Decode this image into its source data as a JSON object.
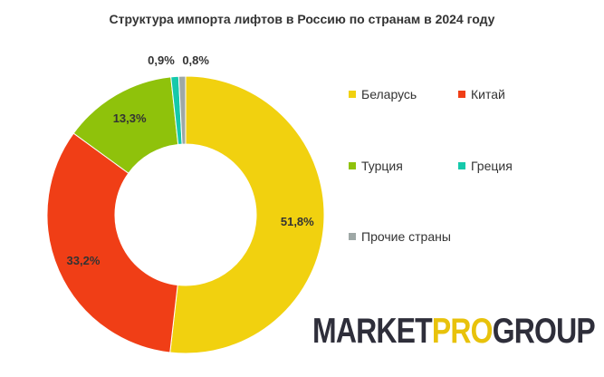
{
  "chart_data": {
    "type": "pie",
    "title": "Структура импорта лифтов в Россию по странам в 2024 году",
    "categories": [
      "Беларусь",
      "Китай",
      "Турция",
      "Греция",
      "Прочие страны"
    ],
    "values": [
      51.8,
      33.2,
      13.3,
      0.9,
      0.8
    ],
    "labels": [
      "51,8%",
      "33,2%",
      "13,3%",
      "0,9%",
      "0,8%"
    ],
    "colors": [
      "#F1D10F",
      "#F03E16",
      "#8FC20B",
      "#15C9AB",
      "#9EA8A6"
    ],
    "legend_position": "right"
  },
  "logo": {
    "part1": "MARKET",
    "part2": "PRO",
    "part3": "GROUP",
    "colors": [
      "#2E2E3A",
      "#E8C20B",
      "#2E2E3A"
    ]
  }
}
